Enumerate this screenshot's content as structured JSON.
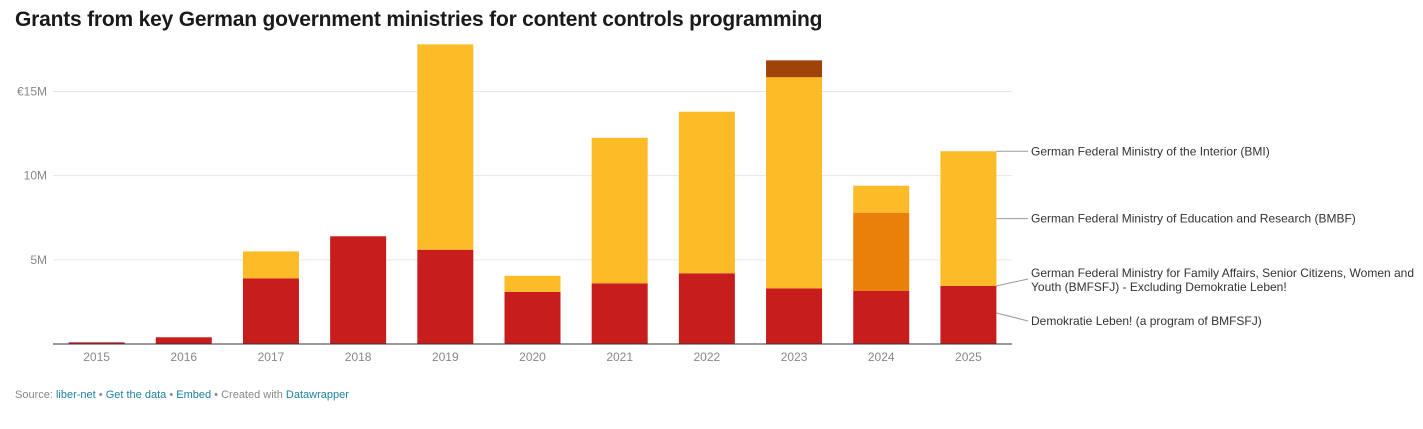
{
  "chart_data": {
    "type": "bar",
    "stacked": true,
    "title": "Grants from key German government ministries for content controls programming",
    "categories": [
      "2015",
      "2016",
      "2017",
      "2018",
      "2019",
      "2020",
      "2021",
      "2022",
      "2023",
      "2024",
      "2025"
    ],
    "series": [
      {
        "name": "Demokratie Leben! (a program of BMFSFJ)",
        "color": "#c71e1d",
        "values": [
          0.1,
          0.4,
          3.9,
          6.4,
          5.6,
          3.1,
          3.6,
          4.2,
          3.3,
          3.15,
          3.45
        ]
      },
      {
        "name": "German Federal Ministry for Family Affairs, Senior Citizens, Women and Youth (BMFSFJ) - Excluding Demokratie Leben!",
        "color": "#e8800a",
        "values": [
          0,
          0,
          0,
          0,
          0,
          0,
          0,
          0,
          0,
          4.65,
          0
        ]
      },
      {
        "name": "German Federal Ministry of Education and Research (BMBF)",
        "color": "#fdbb27",
        "values": [
          0,
          0,
          1.6,
          0,
          12.2,
          0.95,
          8.65,
          9.6,
          12.55,
          1.6,
          8.0
        ]
      },
      {
        "name": "German Federal Ministry of the Interior (BMI)",
        "color": "#a0430a",
        "values": [
          0,
          0,
          0,
          0,
          0,
          0,
          0,
          0,
          1.0,
          0,
          0
        ]
      }
    ],
    "legend_labels": {
      "bmi": "German Federal Ministry of the Interior (BMI)",
      "bmbf": "German Federal Ministry of Education and Research (BMBF)",
      "bmfsfj_line1": "German Federal Ministry for Family Affairs, Senior Citizens, Women and",
      "bmfsfj_line2": "Youth (BMFSFJ) - Excluding Demokratie Leben!",
      "dl": "Demokratie Leben! (a program of BMFSFJ)"
    },
    "yticks": [
      {
        "value": 5,
        "label": "5M"
      },
      {
        "value": 10,
        "label": "10M"
      },
      {
        "value": 15,
        "label": "€15M"
      }
    ],
    "ylim": [
      0,
      18
    ],
    "xlabel": "",
    "ylabel": "",
    "legend_position": "right",
    "grid": true
  },
  "footer": {
    "source_prefix": "Source:",
    "source_link": "liber-net",
    "sep1": "•",
    "get_data": "Get the data",
    "sep2": "•",
    "embed": "Embed",
    "sep3": "•",
    "created_with": "Created with",
    "datawrapper": "Datawrapper"
  },
  "colors": {
    "axis": "#333333",
    "grid": "#e6e6e6",
    "tick_text": "#888888",
    "label_text": "#333333"
  }
}
